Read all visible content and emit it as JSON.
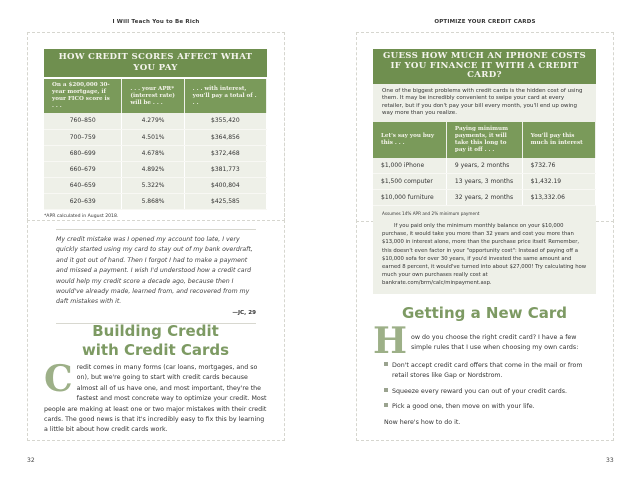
{
  "left": {
    "running_head": "I Will Teach You to Be Rich",
    "page_number": "32",
    "table": {
      "title": "HOW CREDIT SCORES AFFECT WHAT YOU PAY",
      "headers": [
        "On a $200,000 30-year mortgage, if your FICO score is . . .",
        ". . . your APR* (interest rate) will be . . .",
        ". . . with interest, you'll pay a total of . . ."
      ],
      "rows": [
        [
          "760–850",
          "4.279%",
          "$355,420"
        ],
        [
          "700–759",
          "4.501%",
          "$364,856"
        ],
        [
          "680–699",
          "4.678%",
          "$372,468"
        ],
        [
          "660–679",
          "4.892%",
          "$381,773"
        ],
        [
          "640–659",
          "5.322%",
          "$400,804"
        ],
        [
          "620–639",
          "5.868%",
          "$425,585"
        ]
      ],
      "footnote": "*APR calculated in August 2018."
    },
    "quote": {
      "text": "My credit mistake was I opened my account too late, I very quickly started using my card to stay out of my bank overdraft, and it got out of hand. Then I forgot I had to make a payment and missed a payment. I wish I'd understood how a credit card would help my credit score a decade ago, because then I would've already made, learned from, and recovered from my daft mistakes with it.",
      "attribution": "—JC, 29"
    },
    "section": {
      "heading_line1": "Building Credit",
      "heading_line2": "with Credit Cards",
      "drop_cap": "C",
      "body": "redit comes in many forms (car loans, mortgages, and so on), but we're going to start with credit cards because almost all of us have one, and most important, they're the fastest and most concrete way to optimize your credit. Most people are making at least one or two major mistakes with their credit cards. The good news is that it's incredibly easy to fix this by learning a little bit about how credit cards work."
    }
  },
  "right": {
    "running_head": "OPTIMIZE YOUR CREDIT CARDS",
    "page_number": "33",
    "box": {
      "title": "GUESS HOW MUCH AN IPHONE COSTS IF YOU FINANCE IT WITH A CREDIT CARD?",
      "intro": "One of the biggest problems with credit cards is the hidden cost of using them. It may be incredibly convenient to swipe your card at every retailer, but if you don't pay your bill every month, you'll end up owing way more than you realize.",
      "headers": [
        "Let's say you buy this . . .",
        "Paying minimum payments, it will take this long to pay it off . . .",
        "You'll pay this much in interest"
      ],
      "rows": [
        [
          "$1,000 iPhone",
          "9 years, 2 months",
          "$732.76"
        ],
        [
          "$1,500 computer",
          "13 years, 3 months",
          "$1,432.19"
        ],
        [
          "$10,000 furniture",
          "32 years, 2 months",
          "$13,332.06"
        ]
      ],
      "footnote": "Assumes 14% APR and 2% minimum payment",
      "paragraph": "If you paid only the minimum monthly balance on your $10,000 purchase, it would take you more than 32 years and cost you more than $13,000 in interest alone, more than the purchase price itself. Remember, this doesn't even factor in your \"opportunity cost\": Instead of paying off a $10,000 sofa for over 30 years, if you'd invested the same amount and earned 8 percent, it would've turned into about $27,000! Try calculating how much your own purchases really cost at bankrate.com/brm/calc/minpayment.asp."
    },
    "section": {
      "heading": "Getting a New Card",
      "drop_cap": "H",
      "intro": "ow do you choose the right credit card? I have a few simple rules that I use when choosing my own cards:",
      "bullets": [
        "Don't accept credit card offers that come in the mail or from retail stores like Gap or Nordstrom.",
        "Squeeze every reward you can out of your credit cards.",
        "Pick a good one, then move on with your life."
      ],
      "closing": "Now here's how to do it."
    }
  },
  "colors": {
    "accent_green": "#6f8f4f",
    "heading_green": "#7d9a63",
    "box_bg": "#eef0e8"
  }
}
